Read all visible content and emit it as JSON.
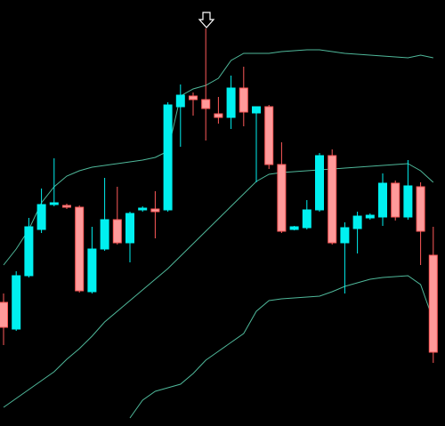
{
  "chart_data": {
    "type": "candlestick",
    "ylim": [
      0,
      479
    ],
    "up_color": "#00f0f0",
    "down_color": "#ff9a9a",
    "down_edge": "#ff5a5a",
    "open": [
      139,
      109,
      169,
      221,
      249,
      248,
      246,
      151,
      199,
      232,
      206,
      243,
      244,
      243,
      359,
      371,
      367,
      351,
      347,
      380,
      352,
      359,
      294,
      221,
      223,
      243,
      304,
      206,
      222,
      234,
      235,
      273,
      235,
      269,
      192
    ],
    "close": [
      111,
      169,
      224,
      249,
      251,
      246,
      152,
      199,
      232,
      206,
      239,
      245,
      241,
      361,
      372,
      367,
      357,
      347,
      380,
      353,
      359,
      294,
      219,
      224,
      243,
      304,
      206,
      223,
      236,
      237,
      273,
      235,
      270,
      219,
      83
    ],
    "high": [
      149,
      174,
      234,
      267,
      301,
      250,
      248,
      224,
      279,
      269,
      241,
      247,
      264,
      364,
      384,
      375,
      447,
      370,
      394,
      404,
      359,
      361,
      319,
      225,
      254,
      307,
      311,
      229,
      241,
      239,
      284,
      276,
      299,
      274,
      224
    ],
    "low": [
      91,
      107,
      167,
      217,
      247,
      244,
      150,
      149,
      197,
      204,
      184,
      241,
      211,
      241,
      314,
      349,
      321,
      340,
      334,
      337,
      274,
      289,
      217,
      220,
      221,
      241,
      204,
      149,
      194,
      232,
      225,
      231,
      232,
      181,
      71
    ],
    "bands": [
      {
        "color": "#4fb89a",
        "values": [
          181,
          199,
          221,
          251,
          269,
          281,
          287,
          291,
          293,
          295,
          297,
          299,
          302,
          309,
          371,
          379,
          383,
          391,
          411,
          419,
          419,
          419,
          421,
          422,
          423,
          423,
          421,
          419,
          418,
          417,
          416,
          415,
          414,
          417,
          414
        ]
      },
      {
        "color": "#4fb89a",
        "values": [
          21,
          31,
          41,
          51,
          61,
          75,
          87,
          101,
          117,
          129,
          141,
          153,
          165,
          177,
          191,
          205,
          219,
          233,
          247,
          261,
          275,
          283,
          285,
          286,
          287,
          288,
          289,
          290,
          291,
          292,
          293,
          294,
          295,
          287,
          274
        ]
      },
      {
        "color": "#4fb89a",
        "values": [
          null,
          null,
          null,
          null,
          null,
          null,
          null,
          null,
          null,
          null,
          9,
          29,
          39,
          43,
          47,
          59,
          74,
          84,
          94,
          104,
          129,
          141,
          143,
          144,
          145,
          146,
          151,
          157,
          161,
          165,
          167,
          168,
          169,
          159,
          119
        ]
      }
    ]
  }
}
